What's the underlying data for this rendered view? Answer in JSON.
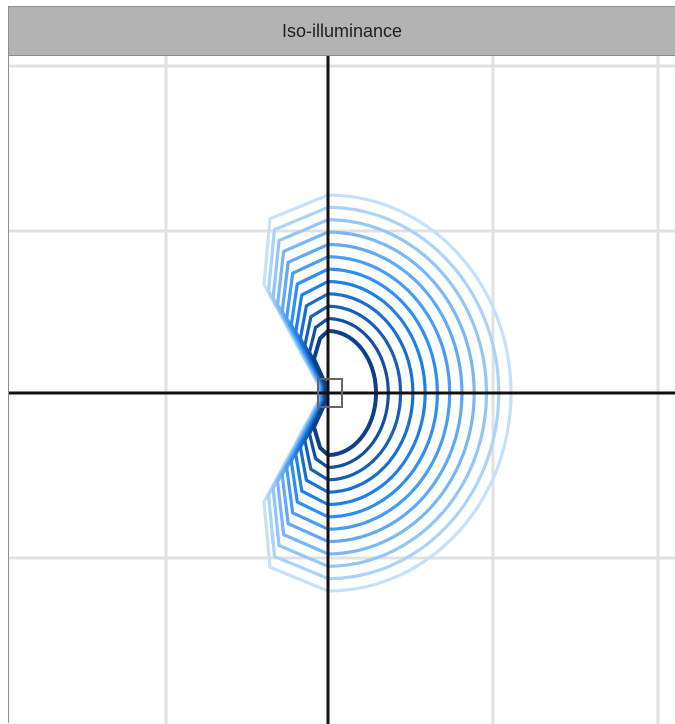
{
  "panel": {
    "title": "Iso-illuminance"
  },
  "chart_data": {
    "type": "contour",
    "grid": true,
    "axes": "crosshair",
    "luminaire_marker": "square",
    "contour_levels": 12,
    "colors": {
      "grid": "#e0e0e0",
      "axis": "#111111",
      "contour_darkest": "#0d3f8a",
      "contour_mid": "#1f86f2",
      "contour_lightest": "#c4e0fb",
      "header_bg": "#b3b3b3",
      "marker": "#666666"
    }
  }
}
